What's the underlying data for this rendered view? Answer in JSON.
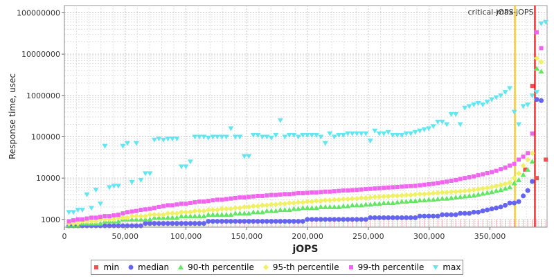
{
  "chart_data": {
    "type": "scatter",
    "title": "",
    "xlabel": "jOPS",
    "ylabel": "Response time, usec",
    "y_scale": "log",
    "xlim": [
      0,
      397000
    ],
    "ylim": [
      650,
      150000000
    ],
    "grid": true,
    "legend_position": "bottom",
    "x_ticks": [
      "0",
      "50,000",
      "100,000",
      "150,000",
      "200,000",
      "250,000",
      "300,000",
      "350,000"
    ],
    "x_tick_values": [
      0,
      50000,
      100000,
      150000,
      200000,
      250000,
      300000,
      350000
    ],
    "y_ticks": [
      "1000",
      "10000",
      "100000",
      "1000000",
      "10000000",
      "100000000"
    ],
    "y_tick_values": [
      1000,
      10000,
      100000,
      1000000,
      10000000,
      100000000
    ],
    "markers": [
      {
        "label": "critical-jOPS",
        "x": 370600,
        "color": "#ffc000"
      },
      {
        "label": "max-jOPS",
        "x": 387000,
        "color": "#ee0000"
      }
    ],
    "x": [
      3700,
      7400,
      11100,
      14800,
      18500,
      22200,
      25900,
      29600,
      33300,
      37000,
      40700,
      44400,
      48100,
      51800,
      55500,
      59200,
      62900,
      66600,
      70300,
      74000,
      77700,
      81400,
      85100,
      88800,
      92500,
      96200,
      99900,
      103600,
      107300,
      111000,
      114700,
      118400,
      122100,
      125800,
      129500,
      133200,
      136900,
      140600,
      144300,
      148000,
      151700,
      155400,
      159100,
      162800,
      166500,
      170200,
      173900,
      177600,
      181300,
      185000,
      188700,
      192400,
      196100,
      199800,
      203500,
      207200,
      210900,
      214600,
      218300,
      222000,
      225700,
      229400,
      233100,
      236800,
      240500,
      244200,
      247900,
      251600,
      255300,
      259000,
      262700,
      266400,
      270100,
      273800,
      277500,
      281200,
      284900,
      288600,
      292300,
      296000,
      299700,
      303400,
      307100,
      310800,
      314500,
      318200,
      321900,
      325600,
      329300,
      333000,
      336700,
      340400,
      344100,
      347800,
      351500,
      355200,
      358900,
      362600,
      366300,
      370000,
      373700,
      377400,
      381100,
      384800,
      388500,
      392200,
      395900
    ],
    "series": [
      {
        "name": "min",
        "color": "#f05050",
        "marker": "square",
        "points": [
          [
            379000,
            16000
          ],
          [
            384800,
            1700000
          ],
          [
            388500,
            10000
          ],
          [
            395900,
            28000
          ]
        ]
      },
      {
        "name": "median",
        "color": "#6464f0",
        "marker": "circle",
        "values": [
          700,
          700,
          700,
          700,
          700,
          700,
          700,
          700,
          700,
          700,
          700,
          700,
          700,
          700,
          700,
          700,
          700,
          800,
          800,
          800,
          800,
          800,
          800,
          800,
          800,
          800,
          800,
          800,
          800,
          800,
          800,
          900,
          900,
          900,
          900,
          900,
          900,
          900,
          900,
          900,
          900,
          900,
          900,
          900,
          900,
          900,
          900,
          900,
          900,
          900,
          900,
          900,
          900,
          1000,
          1000,
          1000,
          1000,
          1000,
          1000,
          1000,
          1000,
          1000,
          1000,
          1000,
          1000,
          1000,
          1000,
          1100,
          1100,
          1100,
          1100,
          1100,
          1100,
          1100,
          1100,
          1100,
          1100,
          1100,
          1200,
          1200,
          1200,
          1200,
          1200,
          1300,
          1300,
          1300,
          1300,
          1400,
          1400,
          1400,
          1500,
          1500,
          1600,
          1700,
          1800,
          1900,
          2000,
          2200,
          2500,
          2500,
          2700,
          3700,
          5000,
          8300,
          800000,
          750000
        ]
      },
      {
        "name": "90-th percentile",
        "color": "#64e664",
        "marker": "triangle",
        "values": [
          700,
          700,
          700,
          800,
          800,
          800,
          800,
          800,
          900,
          900,
          900,
          900,
          1000,
          1000,
          1000,
          1000,
          1000,
          1000,
          1000,
          1100,
          1100,
          1100,
          1100,
          1100,
          1100,
          1200,
          1200,
          1200,
          1200,
          1200,
          1200,
          1300,
          1300,
          1300,
          1300,
          1300,
          1300,
          1400,
          1400,
          1400,
          1400,
          1500,
          1500,
          1500,
          1600,
          1600,
          1600,
          1700,
          1700,
          1700,
          1800,
          1800,
          1900,
          1900,
          1900,
          1900,
          2000,
          2000,
          2000,
          2000,
          2000,
          2100,
          2100,
          2200,
          2200,
          2200,
          2300,
          2300,
          2400,
          2400,
          2500,
          2500,
          2500,
          2600,
          2700,
          2700,
          2800,
          2800,
          2900,
          2900,
          3000,
          3000,
          3100,
          3200,
          3200,
          3300,
          3400,
          3500,
          3600,
          3700,
          3800,
          4000,
          4200,
          4400,
          4600,
          4900,
          5200,
          5600,
          6000,
          7500,
          9000,
          12000,
          16000,
          25000,
          4500000,
          3800000
        ]
      },
      {
        "name": "95-th percentile",
        "color": "#f0f064",
        "marker": "diamond",
        "values": [
          800,
          800,
          800,
          900,
          900,
          900,
          900,
          1000,
          1000,
          1000,
          1000,
          1100,
          1100,
          1100,
          1200,
          1200,
          1200,
          1200,
          1300,
          1300,
          1300,
          1300,
          1400,
          1400,
          1400,
          1500,
          1500,
          1500,
          1600,
          1600,
          1600,
          1700,
          1700,
          1700,
          1800,
          1800,
          1800,
          1900,
          1900,
          2000,
          2000,
          2100,
          2100,
          2200,
          2200,
          2300,
          2300,
          2400,
          2400,
          2500,
          2500,
          2600,
          2600,
          2700,
          2700,
          2800,
          2800,
          2900,
          2900,
          3000,
          3000,
          3100,
          3100,
          3200,
          3200,
          3300,
          3300,
          3400,
          3500,
          3500,
          3600,
          3600,
          3700,
          3700,
          3800,
          3900,
          3900,
          4000,
          4100,
          4100,
          4200,
          4300,
          4400,
          4500,
          4500,
          4600,
          4700,
          4800,
          4900,
          5000,
          5200,
          5400,
          5600,
          5800,
          6100,
          6400,
          6800,
          7200,
          7800,
          10000,
          13000,
          20000,
          28000,
          40000,
          8000000,
          6500000
        ]
      },
      {
        "name": "99-th percentile",
        "color": "#f064f0",
        "marker": "square",
        "values": [
          900,
          950,
          1000,
          1000,
          1050,
          1100,
          1100,
          1150,
          1200,
          1200,
          1250,
          1300,
          1400,
          1500,
          1550,
          1600,
          1700,
          1750,
          1800,
          1900,
          2000,
          2100,
          2200,
          2200,
          2300,
          2400,
          2400,
          2500,
          2600,
          2700,
          2700,
          2800,
          2900,
          3000,
          3000,
          3100,
          3200,
          3300,
          3400,
          3400,
          3500,
          3600,
          3700,
          3700,
          3800,
          3900,
          3900,
          4000,
          4100,
          4100,
          4200,
          4300,
          4300,
          4400,
          4500,
          4500,
          4600,
          4700,
          4700,
          4800,
          4900,
          5000,
          5000,
          5100,
          5200,
          5300,
          5400,
          5500,
          5600,
          5700,
          5800,
          5900,
          6000,
          6100,
          6200,
          6300,
          6400,
          6500,
          6700,
          6900,
          7100,
          7300,
          7600,
          7900,
          8200,
          8600,
          9000,
          9500,
          10000,
          10500,
          11000,
          11700,
          12400,
          13200,
          14000,
          15000,
          16500,
          18000,
          20000,
          22000,
          28000,
          33000,
          40000,
          120000,
          34000000,
          14000000
        ]
      },
      {
        "name": "max",
        "color": "#64e6f0",
        "marker": "triangle-down",
        "values": [
          1500,
          1500,
          1700,
          1700,
          4000,
          1900,
          5200,
          2400,
          60000,
          6000,
          6500,
          6500,
          60000,
          70000,
          8000,
          70000,
          9000,
          13000,
          13000,
          85000,
          90000,
          85000,
          90000,
          90000,
          90000,
          19000,
          19000,
          25000,
          100000,
          100000,
          100000,
          95000,
          100000,
          100000,
          100000,
          100000,
          160000,
          100000,
          100000,
          34000,
          34000,
          110000,
          110000,
          100000,
          100000,
          95000,
          110000,
          250000,
          100000,
          110000,
          110000,
          100000,
          110000,
          110000,
          110000,
          110000,
          100000,
          70000,
          120000,
          100000,
          110000,
          110000,
          120000,
          120000,
          120000,
          120000,
          120000,
          80000,
          140000,
          120000,
          120000,
          130000,
          110000,
          110000,
          110000,
          120000,
          120000,
          130000,
          140000,
          150000,
          160000,
          180000,
          230000,
          230000,
          200000,
          350000,
          350000,
          200000,
          500000,
          550000,
          600000,
          650000,
          600000,
          700000,
          800000,
          900000,
          1000000,
          1200000,
          1500000,
          400000,
          200000,
          550000,
          600000,
          1000000,
          1200000,
          55000000,
          60000000
        ]
      }
    ]
  }
}
